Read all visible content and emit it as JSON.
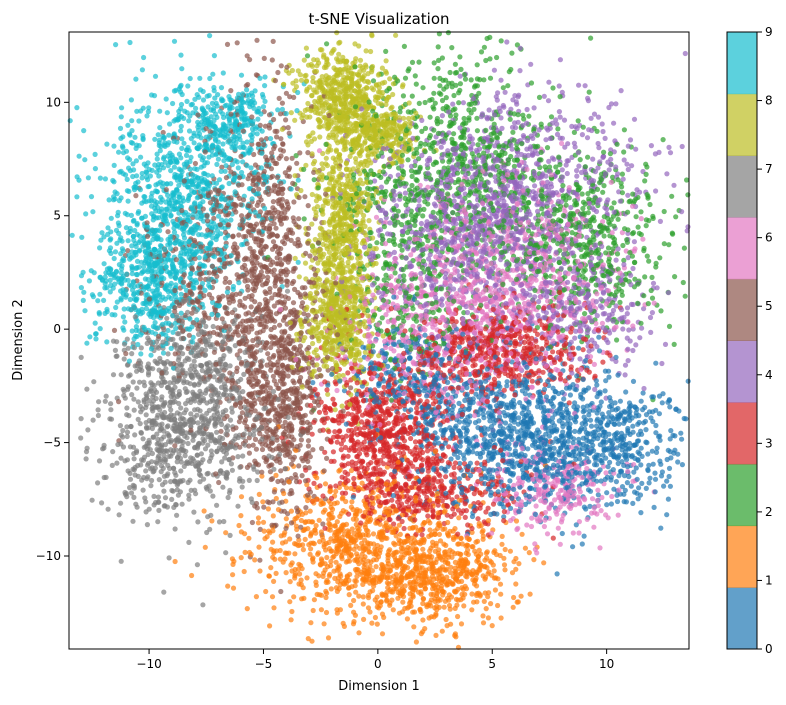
{
  "chart_data": {
    "type": "scatter",
    "title": "t-SNE Visualization",
    "xlabel": "Dimension 1",
    "ylabel": "Dimension 2",
    "xlim": [
      -13.5,
      13.6
    ],
    "ylim": [
      -14.1,
      13.1
    ],
    "xticks": [
      -10,
      -5,
      0,
      5,
      10
    ],
    "yticks": [
      -10,
      -5,
      0,
      5,
      10
    ],
    "grid": false,
    "colorbar": {
      "label_ticks": [
        0,
        1,
        2,
        3,
        4,
        5,
        6,
        7,
        8,
        9
      ],
      "range": [
        0,
        9
      ],
      "position": "right"
    },
    "marker_alpha": 0.7,
    "series": [
      {
        "label": 0,
        "color": "#1f77b4",
        "clusters": [
          {
            "cx": 9.0,
            "cy": -5.0,
            "sx": 2.3,
            "sy": 1.5,
            "weight": 3
          },
          {
            "cx": 5.0,
            "cy": -4.5,
            "sx": 2.0,
            "sy": 1.6,
            "weight": 2
          },
          {
            "cx": 1.5,
            "cy": -2.0,
            "sx": 1.5,
            "sy": 1.2,
            "weight": 1
          }
        ]
      },
      {
        "label": 1,
        "color": "#ff7f0e",
        "clusters": [
          {
            "cx": -1.0,
            "cy": -9.5,
            "sx": 2.3,
            "sy": 1.6,
            "weight": 3
          },
          {
            "cx": 2.5,
            "cy": -10.8,
            "sx": 1.8,
            "sy": 1.1,
            "weight": 2
          }
        ]
      },
      {
        "label": 2,
        "color": "#2ca02c",
        "clusters": [
          {
            "cx": 3.5,
            "cy": 7.0,
            "sx": 2.3,
            "sy": 2.6,
            "weight": 3
          },
          {
            "cx": 9.0,
            "cy": 4.0,
            "sx": 2.0,
            "sy": 2.2,
            "weight": 2
          },
          {
            "cx": 1.5,
            "cy": 2.0,
            "sx": 1.5,
            "sy": 2.0,
            "weight": 1
          }
        ]
      },
      {
        "label": 3,
        "color": "#d62728",
        "clusters": [
          {
            "cx": 0.5,
            "cy": -4.5,
            "sx": 1.6,
            "sy": 1.6,
            "weight": 3
          },
          {
            "cx": 5.5,
            "cy": -1.0,
            "sx": 1.8,
            "sy": 1.0,
            "weight": 2
          },
          {
            "cx": 2.8,
            "cy": -7.2,
            "sx": 2.0,
            "sy": 0.8,
            "weight": 1
          }
        ]
      },
      {
        "label": 4,
        "color": "#9467bd",
        "clusters": [
          {
            "cx": 6.5,
            "cy": 6.0,
            "sx": 2.5,
            "sy": 2.5,
            "weight": 3
          },
          {
            "cx": 3.5,
            "cy": 4.0,
            "sx": 2.2,
            "sy": 2.2,
            "weight": 2
          },
          {
            "cx": 9.0,
            "cy": 0.5,
            "sx": 1.6,
            "sy": 1.4,
            "weight": 1
          }
        ]
      },
      {
        "label": 5,
        "color": "#8c564b",
        "clusters": [
          {
            "cx": -5.0,
            "cy": 3.0,
            "sx": 1.2,
            "sy": 3.8,
            "weight": 3
          },
          {
            "cx": -4.2,
            "cy": -3.5,
            "sx": 1.0,
            "sy": 2.3,
            "weight": 2
          },
          {
            "cx": -7.5,
            "cy": 2.0,
            "sx": 1.5,
            "sy": 2.5,
            "weight": 1
          }
        ]
      },
      {
        "label": 6,
        "color": "#e377c2",
        "clusters": [
          {
            "cx": 3.0,
            "cy": 0.0,
            "sx": 2.5,
            "sy": 2.0,
            "weight": 2
          },
          {
            "cx": 6.0,
            "cy": 2.5,
            "sx": 2.5,
            "sy": 2.0,
            "weight": 2
          },
          {
            "cx": 7.5,
            "cy": -7.0,
            "sx": 1.5,
            "sy": 1.0,
            "weight": 1
          }
        ]
      },
      {
        "label": 7,
        "color": "#7f7f7f",
        "clusters": [
          {
            "cx": -8.5,
            "cy": -4.5,
            "sx": 1.8,
            "sy": 2.0,
            "weight": 3
          },
          {
            "cx": -8.0,
            "cy": -1.5,
            "sx": 1.5,
            "sy": 1.3,
            "weight": 1
          }
        ]
      },
      {
        "label": 8,
        "color": "#bcbd22",
        "clusters": [
          {
            "cx": -1.5,
            "cy": 10.3,
            "sx": 1.0,
            "sy": 1.0,
            "weight": 2
          },
          {
            "cx": -1.5,
            "cy": 5.0,
            "sx": 0.7,
            "sy": 2.0,
            "weight": 2
          },
          {
            "cx": -1.8,
            "cy": 0.5,
            "sx": 0.8,
            "sy": 1.5,
            "weight": 2
          },
          {
            "cx": 0.0,
            "cy": 8.5,
            "sx": 0.8,
            "sy": 0.6,
            "weight": 1
          }
        ]
      },
      {
        "label": 9,
        "color": "#17becf",
        "clusters": [
          {
            "cx": -8.5,
            "cy": 6.0,
            "sx": 1.8,
            "sy": 2.3,
            "weight": 3
          },
          {
            "cx": -9.8,
            "cy": 2.0,
            "sx": 1.3,
            "sy": 1.5,
            "weight": 2
          },
          {
            "cx": -6.5,
            "cy": 9.0,
            "sx": 1.0,
            "sy": 1.0,
            "weight": 1
          }
        ]
      }
    ]
  }
}
